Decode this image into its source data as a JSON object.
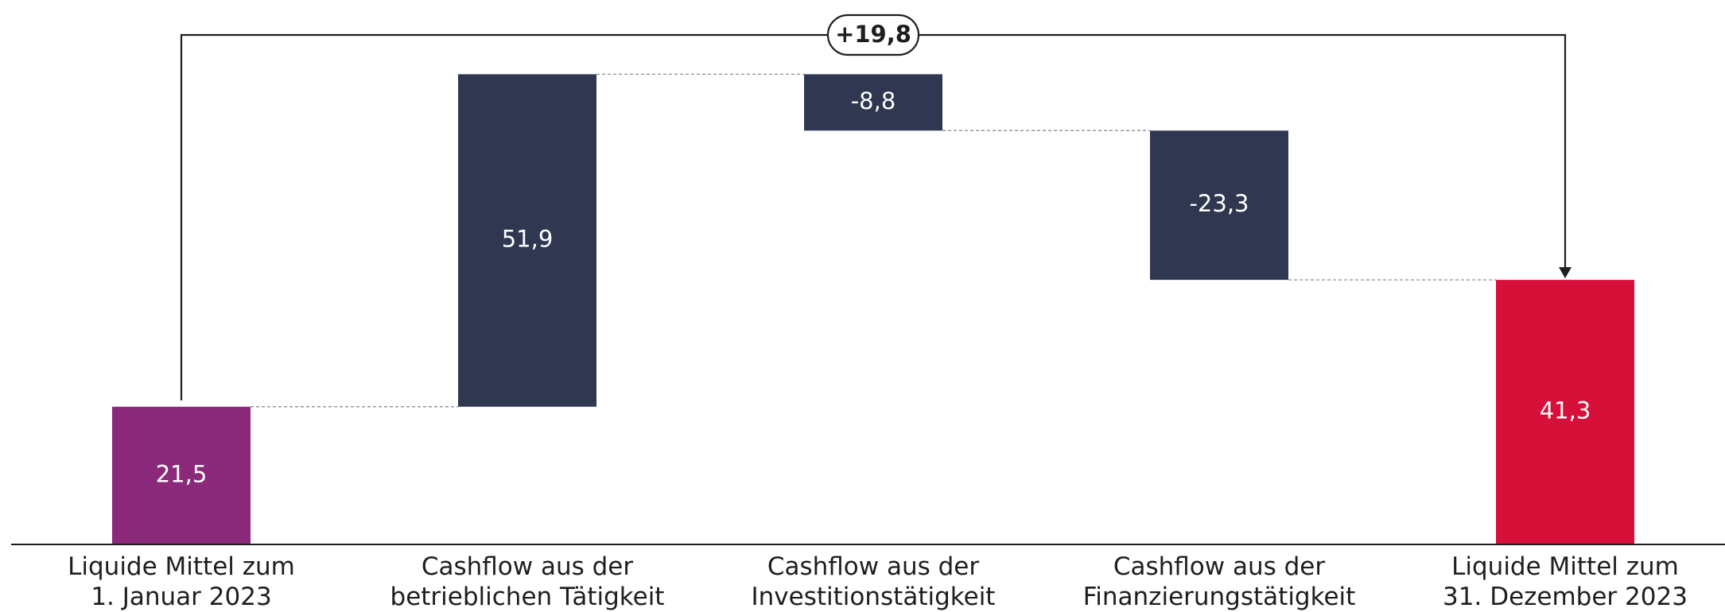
{
  "chart_data": {
    "type": "waterfall",
    "categories": [
      "Liquide Mittel zum\n1. Januar 2023",
      "Cashflow aus der\nbetrieblichen Tätigkeit",
      "Cashflow aus der\nInvestitionstätigkeit",
      "Cashflow aus der\nFinanzierungstätigkeit",
      "Liquide Mittel zum\n31. Dezember 2023"
    ],
    "values": [
      21.5,
      51.9,
      -8.8,
      -23.3,
      41.3
    ],
    "value_labels": [
      "21,5",
      "51,9",
      "-8,8",
      "-23,3",
      "41,3"
    ],
    "colors": [
      "#8b2a7b",
      "#2f3850",
      "#2f3850",
      "#2f3850",
      "#d7103a"
    ],
    "annotation": "+19,8"
  }
}
